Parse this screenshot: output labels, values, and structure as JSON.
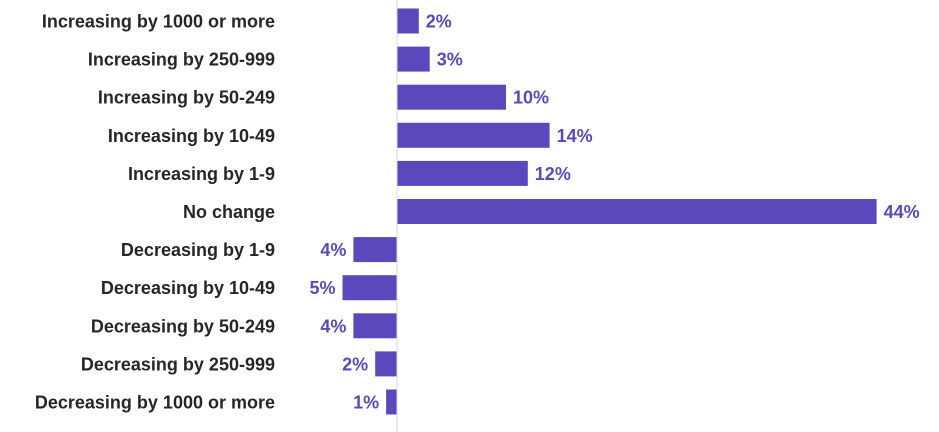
{
  "chart_data": {
    "type": "bar",
    "orientation": "horizontal",
    "title": "",
    "xlabel": "",
    "ylabel": "",
    "grid": false,
    "legend": "none",
    "categories": [
      "Increasing by 1000 or more",
      "Increasing by 250-999",
      "Increasing by 50-249",
      "Increasing by 10-49",
      "Increasing by 1-9",
      "No change",
      "Decreasing by 1-9",
      "Decreasing by 10-49",
      "Decreasing by 50-249",
      "Decreasing by 250-999",
      "Decreasing by 1000 or more"
    ],
    "series": [
      {
        "values": [
          2,
          3,
          10,
          14,
          12,
          44,
          4,
          5,
          4,
          2,
          1
        ],
        "display_labels": [
          "2%",
          "3%",
          "10%",
          "14%",
          "12%",
          "44%",
          "4%",
          "5%",
          "4%",
          "2%",
          "1%"
        ],
        "direction": [
          "right",
          "right",
          "right",
          "right",
          "right",
          "right",
          "left",
          "left",
          "left",
          "left",
          "left"
        ]
      }
    ],
    "value_unit": "%",
    "colors": {
      "bar": "#5b48bd",
      "data_label": "#5b48bd",
      "category_label": "#262626",
      "axis_line": "#d9d9d9"
    }
  }
}
